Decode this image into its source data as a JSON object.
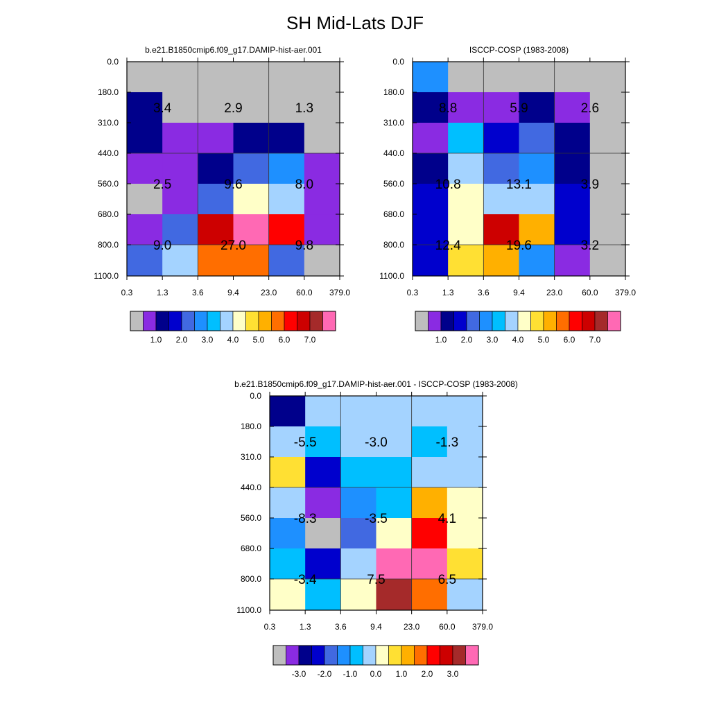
{
  "title": "SH Mid-Lats DJF",
  "palettes": {
    "abs": [
      "#bebebe",
      "#8a2be2",
      "#00008b",
      "#0000cd",
      "#4169e1",
      "#1e90ff",
      "#00bfff",
      "#a4d3ff",
      "#ffffc8",
      "#ffe033",
      "#ffb000",
      "#ff6e00",
      "#ff0000",
      "#cd0000",
      "#a52a2a",
      "#ff69b4"
    ],
    "diff": [
      "#bebebe",
      "#8a2be2",
      "#00008b",
      "#0000cd",
      "#4169e1",
      "#1e90ff",
      "#00bfff",
      "#a4d3ff",
      "#ffffc8",
      "#ffe033",
      "#ffb000",
      "#ff6e00",
      "#ff0000",
      "#cd0000",
      "#a52a2a",
      "#ff69b4"
    ]
  },
  "chart_data": [
    {
      "type": "heatmap",
      "title": "b.e21.B1850cmip6.f09_g17.DAMIP-hist-aer.001",
      "x_ticks": [
        "0.3",
        "1.3",
        "3.6",
        "9.4",
        "23.0",
        "60.0",
        "379.0"
      ],
      "y_ticks": [
        "0.0",
        "180.0",
        "310.0",
        "440.0",
        "560.0",
        "680.0",
        "800.0",
        "1100.0"
      ],
      "palette": "abs",
      "cells": [
        [
          0,
          0,
          0,
          0,
          0,
          0
        ],
        [
          2,
          0,
          0,
          0,
          0,
          0
        ],
        [
          2,
          1,
          1,
          2,
          2,
          0
        ],
        [
          1,
          1,
          2,
          4,
          5,
          1
        ],
        [
          0,
          1,
          4,
          8,
          7,
          1
        ],
        [
          1,
          4,
          13,
          15,
          12,
          1
        ],
        [
          4,
          7,
          11,
          11,
          4,
          0
        ]
      ],
      "labels": [
        [
          "3.4",
          "2.9",
          "1.3"
        ],
        [
          "2.5",
          "9.6",
          "8.0"
        ],
        [
          "9.0",
          "27.0",
          "9.8"
        ]
      ],
      "colorbar_ticks": [
        "1.0",
        "2.0",
        "3.0",
        "4.0",
        "5.0",
        "6.0",
        "7.0"
      ]
    },
    {
      "type": "heatmap",
      "title": "ISCCP-COSP (1983-2008)",
      "x_ticks": [
        "0.3",
        "1.3",
        "3.6",
        "9.4",
        "23.0",
        "60.0",
        "379.0"
      ],
      "y_ticks": [
        "0.0",
        "180.0",
        "310.0",
        "440.0",
        "560.0",
        "680.0",
        "800.0",
        "1100.0"
      ],
      "palette": "abs",
      "cells": [
        [
          5,
          0,
          0,
          0,
          0,
          0
        ],
        [
          2,
          1,
          1,
          2,
          1,
          0
        ],
        [
          1,
          6,
          3,
          4,
          2,
          0
        ],
        [
          2,
          7,
          4,
          5,
          2,
          0
        ],
        [
          3,
          8,
          7,
          7,
          3,
          0
        ],
        [
          3,
          8,
          13,
          10,
          3,
          0
        ],
        [
          3,
          9,
          10,
          5,
          1,
          0
        ]
      ],
      "labels": [
        [
          "8.8",
          "5.9",
          "2.6"
        ],
        [
          "10.8",
          "13.1",
          "3.9"
        ],
        [
          "12.4",
          "19.6",
          "3.2"
        ]
      ],
      "colorbar_ticks": [
        "1.0",
        "2.0",
        "3.0",
        "4.0",
        "5.0",
        "6.0",
        "7.0"
      ]
    },
    {
      "type": "heatmap",
      "title": "b.e21.B1850cmip6.f09_g17.DAMIP-hist-aer.001 - ISCCP-COSP (1983-2008)",
      "x_ticks": [
        "0.3",
        "1.3",
        "3.6",
        "9.4",
        "23.0",
        "60.0",
        "379.0"
      ],
      "y_ticks": [
        "0.0",
        "180.0",
        "310.0",
        "440.0",
        "560.0",
        "680.0",
        "800.0",
        "1100.0"
      ],
      "palette": "diff",
      "cells": [
        [
          2,
          7,
          7,
          7,
          7,
          7
        ],
        [
          7,
          6,
          7,
          7,
          6,
          7
        ],
        [
          9,
          3,
          6,
          6,
          7,
          7
        ],
        [
          7,
          1,
          5,
          6,
          10,
          8
        ],
        [
          5,
          0,
          4,
          8,
          12,
          8
        ],
        [
          6,
          3,
          7,
          15,
          15,
          9
        ],
        [
          8,
          6,
          8,
          14,
          11,
          7
        ]
      ],
      "labels": [
        [
          "-5.5",
          "-3.0",
          "-1.3"
        ],
        [
          "-8.3",
          "-3.5",
          "4.1"
        ],
        [
          "-3.4",
          "7.5",
          "6.5"
        ]
      ],
      "colorbar_ticks": [
        "-3.0",
        "-2.0",
        "-1.0",
        "0.0",
        "1.0",
        "2.0",
        "3.0"
      ]
    }
  ]
}
